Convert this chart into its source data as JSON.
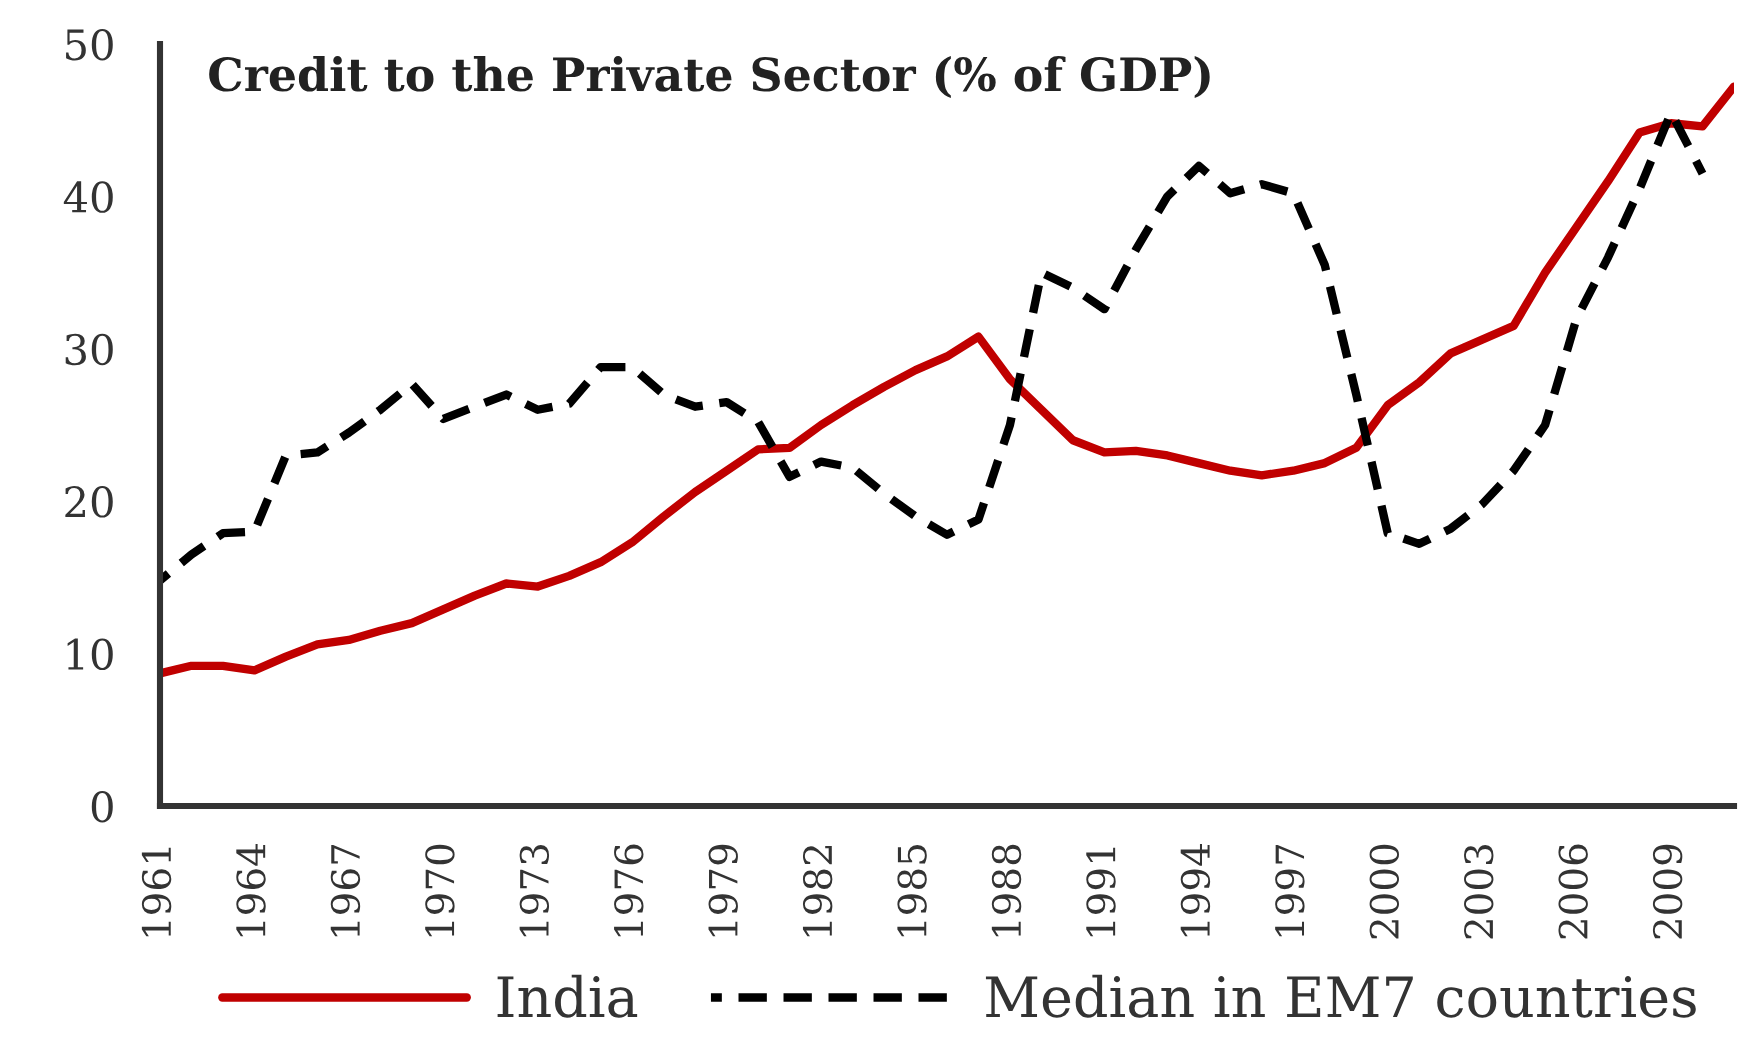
{
  "chart_data": {
    "type": "line",
    "title": "Credit to the Private Sector (% of GDP)",
    "x": [
      1961,
      1962,
      1963,
      1964,
      1965,
      1966,
      1967,
      1968,
      1969,
      1970,
      1971,
      1972,
      1973,
      1974,
      1975,
      1976,
      1977,
      1978,
      1979,
      1980,
      1981,
      1982,
      1983,
      1984,
      1985,
      1986,
      1987,
      1988,
      1989,
      1990,
      1991,
      1992,
      1993,
      1994,
      1995,
      1996,
      1997,
      1998,
      1999,
      2000,
      2001,
      2002,
      2003,
      2004,
      2005,
      2006,
      2007,
      2008,
      2009,
      2010,
      2011
    ],
    "xlim": [
      1961,
      2011
    ],
    "xticks": [
      1961,
      1964,
      1967,
      1970,
      1973,
      1976,
      1979,
      1982,
      1985,
      1988,
      1991,
      1994,
      1997,
      2000,
      2003,
      2006,
      2009
    ],
    "ylim": [
      0,
      50
    ],
    "yticks": [
      0,
      10,
      20,
      30,
      40,
      50
    ],
    "legend": "bottom",
    "series": [
      {
        "name": "India",
        "color": "#c00000",
        "line_style": "solid",
        "values": [
          8.7,
          9.2,
          9.2,
          8.9,
          9.8,
          10.6,
          10.9,
          11.5,
          12.0,
          12.9,
          13.8,
          14.6,
          14.4,
          15.1,
          16.0,
          17.3,
          19.0,
          20.6,
          22.0,
          23.4,
          23.5,
          25.0,
          26.3,
          27.5,
          28.6,
          29.5,
          30.8,
          28.0,
          26.0,
          24.0,
          23.2,
          23.3,
          23.0,
          22.5,
          22.0,
          21.7,
          22.0,
          22.5,
          23.5,
          26.3,
          27.8,
          29.7,
          30.6,
          31.5,
          35.0,
          38.0,
          41.0,
          44.2,
          44.8,
          44.6,
          47.2
        ]
      },
      {
        "name": "Median in EM7 countries",
        "color": "#000000",
        "line_style": "dashed",
        "values": [
          14.8,
          16.5,
          17.9,
          18.0,
          23.0,
          23.2,
          24.5,
          26.0,
          27.7,
          25.4,
          26.2,
          27.0,
          26.0,
          26.4,
          28.8,
          28.8,
          27.0,
          26.2,
          26.5,
          25.2,
          21.6,
          22.6,
          22.2,
          20.5,
          19.0,
          17.8,
          18.8,
          25.0,
          35.0,
          34.0,
          32.6,
          36.5,
          40.0,
          42.0,
          40.2,
          40.8,
          40.2,
          35.5,
          27.0,
          17.9,
          17.2,
          18.2,
          19.8,
          22.0,
          25.0,
          32.0,
          36.0,
          40.5,
          45.5,
          41.5,
          null
        ]
      }
    ]
  }
}
